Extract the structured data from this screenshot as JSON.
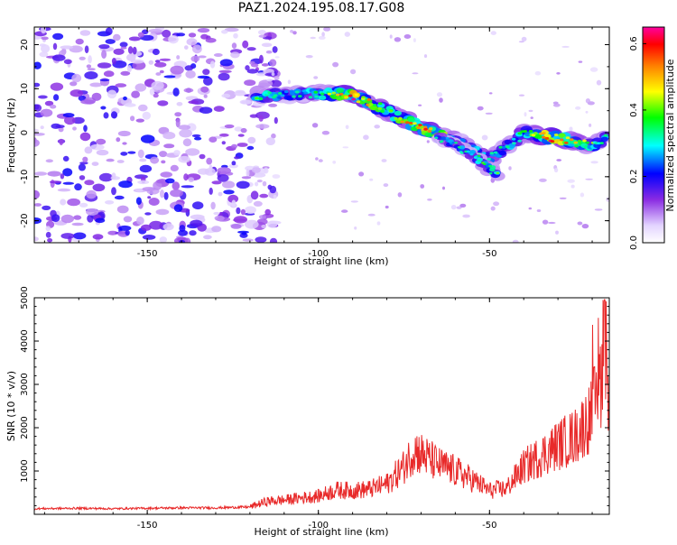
{
  "title": "PAZ1.2024.195.08.17.G08",
  "colors": {
    "snr_line": "#e82a2a",
    "background": "#ffffff"
  },
  "chart_data": [
    {
      "type": "heatmap",
      "xlabel": "Height of straight line (km)",
      "ylabel": "Frequency (Hz)",
      "xlim": [
        -183,
        -15
      ],
      "ylim": [
        -25,
        24
      ],
      "xticks": [
        -150,
        -100,
        -50
      ],
      "yticks": [
        -20,
        -10,
        0,
        10,
        20
      ],
      "colorbar": {
        "label": "Normalized spectral amplitude",
        "range": [
          0,
          0.65
        ],
        "ticks": [
          0.0,
          0.2,
          0.4,
          0.6
        ],
        "colormap": "white-violet-blue-cyan-green-yellow-orange-red-magenta"
      },
      "features": {
        "noise_region_x": [
          -183,
          -118
        ],
        "signal_track": [
          {
            "x": -118,
            "y": 8.5,
            "amplitude": 0.4
          },
          {
            "x": -110,
            "y": 8.5,
            "amplitude": 0.3
          },
          {
            "x": -100,
            "y": 9.0,
            "amplitude": 0.35
          },
          {
            "x": -90,
            "y": 8.5,
            "amplitude": 0.6
          },
          {
            "x": -80,
            "y": 5.0,
            "amplitude": 0.4
          },
          {
            "x": -70,
            "y": 1.0,
            "amplitude": 0.6
          },
          {
            "x": -60,
            "y": -2.0,
            "amplitude": 0.35
          },
          {
            "x": -50,
            "y": -6.0,
            "amplitude": 0.3
          },
          {
            "x": -40,
            "y": 0.0,
            "amplitude": 0.35
          },
          {
            "x": -32,
            "y": -1.0,
            "amplitude": 0.6
          },
          {
            "x": -20,
            "y": -3.0,
            "amplitude": 0.4
          },
          {
            "x": -15,
            "y": -1.0,
            "amplitude": 0.3
          }
        ],
        "secondary_branch": [
          {
            "x": -65,
            "y": -1.0,
            "amplitude": 0.3
          },
          {
            "x": -55,
            "y": -5.0,
            "amplitude": 0.35
          },
          {
            "x": -47,
            "y": -10.0,
            "amplitude": 0.4
          }
        ]
      }
    },
    {
      "type": "line",
      "xlabel": "Height of straight line (km)",
      "ylabel": "SNR (10 * v/v)",
      "xlim": [
        -183,
        -15
      ],
      "ylim": [
        0,
        5000
      ],
      "xticks": [
        -150,
        -100,
        -50
      ],
      "yticks": [
        1000,
        2000,
        3000,
        4000,
        5000
      ],
      "series": [
        {
          "values": [
            {
              "x": -183,
              "y": 130
            },
            {
              "x": -170,
              "y": 140
            },
            {
              "x": -160,
              "y": 130
            },
            {
              "x": -150,
              "y": 140
            },
            {
              "x": -140,
              "y": 150
            },
            {
              "x": -130,
              "y": 150
            },
            {
              "x": -120,
              "y": 170
            },
            {
              "x": -115,
              "y": 300
            },
            {
              "x": -110,
              "y": 330
            },
            {
              "x": -105,
              "y": 380
            },
            {
              "x": -100,
              "y": 420
            },
            {
              "x": -95,
              "y": 560
            },
            {
              "x": -90,
              "y": 550
            },
            {
              "x": -85,
              "y": 580
            },
            {
              "x": -80,
              "y": 700
            },
            {
              "x": -75,
              "y": 1100
            },
            {
              "x": -72,
              "y": 1500
            },
            {
              "x": -70,
              "y": 1400
            },
            {
              "x": -65,
              "y": 1150
            },
            {
              "x": -60,
              "y": 1000
            },
            {
              "x": -55,
              "y": 800
            },
            {
              "x": -50,
              "y": 550
            },
            {
              "x": -45,
              "y": 600
            },
            {
              "x": -40,
              "y": 1100
            },
            {
              "x": -35,
              "y": 1350
            },
            {
              "x": -30,
              "y": 1600
            },
            {
              "x": -25,
              "y": 1800
            },
            {
              "x": -20,
              "y": 2300
            },
            {
              "x": -17,
              "y": 3300
            },
            {
              "x": -15,
              "y": 2600
            }
          ]
        }
      ]
    }
  ]
}
